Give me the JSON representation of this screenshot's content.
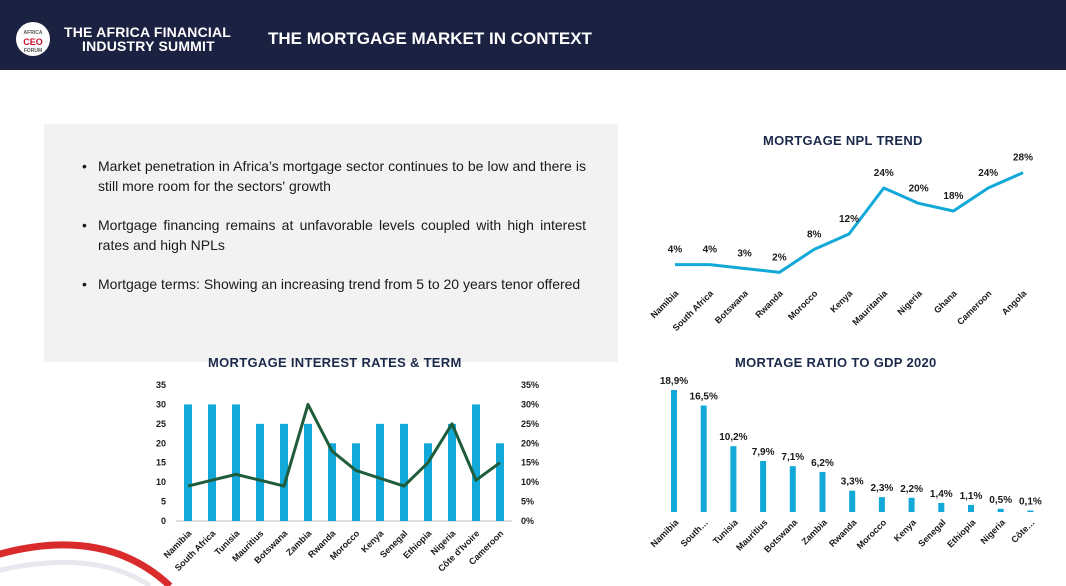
{
  "header": {
    "logo_text_line1": "AFRICA",
    "logo_text_line2": "CEO",
    "logo_text_line3": "FORUM",
    "brand_line1": "THE AFRICA FINANCIAL",
    "brand_line2": "INDUSTRY SUMMIT",
    "title": "THE MORTGAGE MARKET IN CONTEXT"
  },
  "bullets": [
    "Market penetration in Africa’s mortgage sector continues to be low and there is still more room for the sectors' growth",
    "Mortgage financing remains at unfavorable levels coupled with high interest rates and high NPLs",
    "Mortgage terms: Showing an increasing trend from 5 to 20 years tenor offered"
  ],
  "colors": {
    "bar": "#12a9d8",
    "npl_line": "#12a9d8",
    "rate_line": "#1f5c3a",
    "header_bg": "#1b2140"
  },
  "chart_data": [
    {
      "id": "npl",
      "type": "line",
      "title": "MORTGAGE NPL TREND",
      "categories": [
        "Namibia",
        "South Africa",
        "Botswana",
        "Rwanda",
        "Morocco",
        "Kenya",
        "Mauritania",
        "Nigeria",
        "Ghana",
        "Cameroon",
        "Angola"
      ],
      "values": [
        4,
        4,
        3,
        2,
        8,
        12,
        24,
        20,
        18,
        24,
        28
      ],
      "value_labels": [
        "4%",
        "4%",
        "3%",
        "2%",
        "8%",
        "12%",
        "24%",
        "20%",
        "18%",
        "24%",
        "28%"
      ],
      "grid": false
    },
    {
      "id": "rates",
      "type": "bar",
      "title": "MORTGAGE INTEREST RATES & TERM",
      "categories": [
        "Namibia",
        "South Africa",
        "Tunisia",
        "Mauritius",
        "Botswana",
        "Zambia",
        "Rwanda",
        "Morocco",
        "Kenya",
        "Senegal",
        "Ethiopia",
        "Nigeria",
        "Côte d'Ivoire",
        "Cameroon"
      ],
      "series": [
        {
          "type": "bar",
          "axis": "left",
          "values": [
            30,
            30,
            30,
            25,
            25,
            25,
            20,
            20,
            25,
            25,
            20,
            25,
            30,
            20
          ]
        },
        {
          "type": "line",
          "axis": "right",
          "values": [
            9,
            10.5,
            12,
            10.5,
            9,
            30,
            18,
            13,
            11,
            9,
            15,
            25,
            10.5,
            15
          ]
        }
      ],
      "left_ticks": [
        "35",
        "30",
        "25",
        "20",
        "15",
        "10",
        "5",
        "0"
      ],
      "right_ticks": [
        "35%",
        "30%",
        "25%",
        "20%",
        "15%",
        "10%",
        "5%",
        "0%"
      ],
      "ylim": [
        0,
        35
      ],
      "y2lim": [
        0,
        35
      ],
      "grid": false
    },
    {
      "id": "gdp",
      "type": "bar",
      "title": "MORTAGE RATIO TO GDP 2020",
      "categories": [
        "Namibia",
        "South…",
        "Tunisia",
        "Mauritius",
        "Botswana",
        "Zambia",
        "Rwanda",
        "Morocco",
        "Kenya",
        "Senegal",
        "Ethiopia",
        "Nigeria",
        "Côte…"
      ],
      "values": [
        18.9,
        16.5,
        10.2,
        7.9,
        7.1,
        6.2,
        3.3,
        2.3,
        2.2,
        1.4,
        1.1,
        0.5,
        0.1
      ],
      "value_labels": [
        "18,9%",
        "16,5%",
        "10,2%",
        "7,9%",
        "7,1%",
        "6,2%",
        "3,3%",
        "2,3%",
        "2,2%",
        "1,4%",
        "1,1%",
        "0,5%",
        "0,1%"
      ],
      "grid": false
    }
  ]
}
